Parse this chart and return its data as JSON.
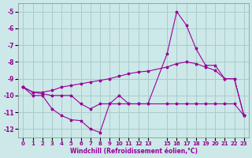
{
  "background_color": "#cce8e8",
  "grid_color": "#aacccc",
  "line_color": "#990099",
  "xlabel": "Windchill (Refroidissement éolien,°C)",
  "xlim": [
    -0.5,
    23.5
  ],
  "ylim": [
    -12.5,
    -4.5
  ],
  "yticks": [
    -12,
    -11,
    -10,
    -9,
    -8,
    -7,
    -6,
    -5
  ],
  "xticks": [
    0,
    1,
    2,
    3,
    4,
    5,
    6,
    7,
    8,
    9,
    10,
    11,
    12,
    13,
    15,
    16,
    17,
    18,
    19,
    20,
    21,
    22,
    23
  ],
  "curve1_x": [
    0,
    1,
    2,
    3,
    4,
    5,
    6,
    7,
    8,
    9,
    10,
    11,
    12,
    13,
    15,
    16,
    17,
    18,
    19,
    20,
    21,
    22,
    23
  ],
  "curve1_y": [
    -9.5,
    -10.0,
    -10.0,
    -10.8,
    -11.2,
    -11.45,
    -11.5,
    -12.0,
    -12.2,
    -10.5,
    -10.0,
    -10.5,
    -10.5,
    -10.5,
    -7.5,
    -5.0,
    -5.8,
    -7.2,
    -8.2,
    -8.2,
    -9.0,
    -9.0,
    -11.2
  ],
  "curve2_x": [
    0,
    1,
    2,
    3,
    4,
    5,
    6,
    7,
    8,
    9,
    10,
    11,
    12,
    13,
    15,
    16,
    17,
    18,
    19,
    20,
    21,
    22,
    23
  ],
  "curve2_y": [
    -9.5,
    -9.8,
    -9.9,
    -10.0,
    -10.0,
    -10.0,
    -10.5,
    -10.8,
    -10.5,
    -10.5,
    -10.5,
    -10.5,
    -10.5,
    -10.5,
    -10.5,
    -10.5,
    -10.5,
    -10.5,
    -10.5,
    -10.5,
    -10.5,
    -10.5,
    -11.2
  ],
  "curve3_x": [
    0,
    1,
    2,
    3,
    4,
    5,
    6,
    7,
    8,
    9,
    10,
    11,
    12,
    13,
    15,
    16,
    17,
    18,
    19,
    20,
    21,
    22,
    23
  ],
  "curve3_y": [
    -9.5,
    -9.8,
    -9.8,
    -9.7,
    -9.5,
    -9.4,
    -9.3,
    -9.2,
    -9.1,
    -9.0,
    -8.85,
    -8.7,
    -8.6,
    -8.55,
    -8.3,
    -8.1,
    -8.0,
    -8.1,
    -8.3,
    -8.5,
    -9.0,
    -9.0,
    -11.2
  ]
}
